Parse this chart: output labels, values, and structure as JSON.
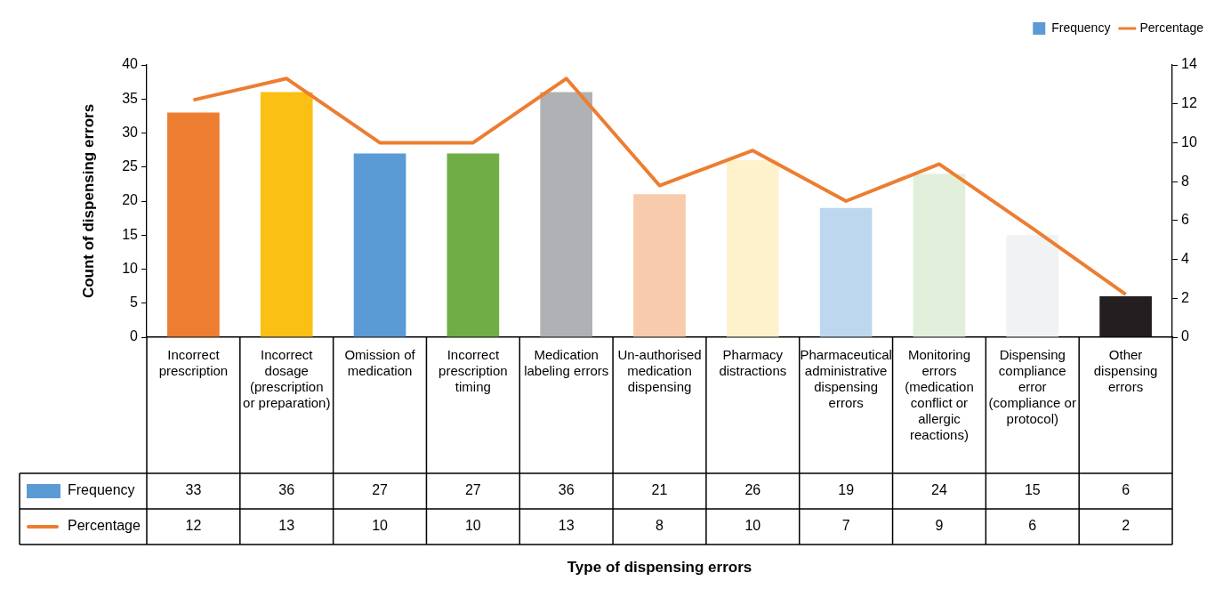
{
  "chart_data": {
    "type": "bar",
    "annotations": [
      "Type of dispensing errors"
    ],
    "ylabel": "Count of dispensing errors",
    "categories": [
      "Incorrect prescription",
      "Incorrect dosage (prescription or preparation)",
      "Omission of medication",
      "Incorrect prescription timing",
      "Medication labeling errors",
      "Un-authorised medication dispensing",
      "Pharmacy distractions",
      "Pharmaceutical administrative dispensing errors",
      "Monitoring errors (medication conflict or allergic reactions)",
      "Dispensing compliance error (compliance or protocol)",
      "Other dispensing errors"
    ],
    "series": [
      {
        "name": "Frequency",
        "color": "#5b9bd5",
        "colors": [
          "#ed7d31",
          "#fbc014",
          "#5b9bd5",
          "#70ad47",
          "#b0b1b4",
          "#f8cbad",
          "#fdf2cc",
          "#bdd7ee",
          "#e2efda",
          "#f1f2f3",
          "#231f20"
        ],
        "values": [
          33,
          36,
          27,
          27,
          36,
          21,
          26,
          19,
          24,
          15,
          6
        ]
      },
      {
        "name": "Percentage",
        "type": "line",
        "axis": "y2",
        "color": "#ed7d31",
        "values": [
          12.2,
          13.3,
          10.0,
          10.0,
          13.3,
          7.8,
          9.6,
          7.0,
          8.9,
          5.6,
          2.2
        ],
        "value_labels": [
          "12",
          "13",
          "10",
          "10",
          "13",
          "8",
          "10",
          "7",
          "9",
          "6",
          "2"
        ]
      }
    ],
    "data_labels": true,
    "ylim": [
      0,
      40
    ],
    "yticks": [
      0,
      5,
      10,
      15,
      20,
      25,
      30,
      35,
      40
    ],
    "y2lim": [
      0,
      14
    ],
    "y2ticks": [
      0,
      2,
      4,
      6,
      8,
      10,
      12,
      14
    ],
    "grid": false,
    "legend": "top right",
    "marker": "none",
    "line_style": "solid"
  }
}
